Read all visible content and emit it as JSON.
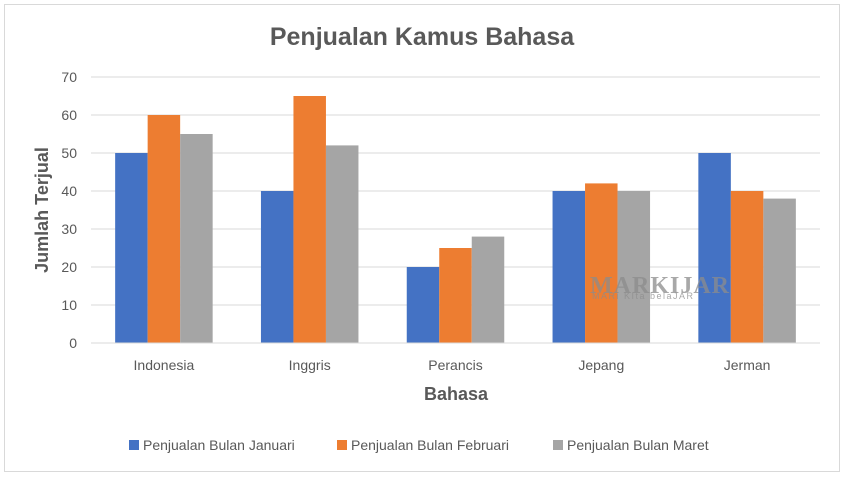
{
  "chart_data": {
    "type": "bar",
    "title": "Penjualan Kamus Bahasa",
    "xlabel": "Bahasa",
    "ylabel": "Jumlah Terjual",
    "categories": [
      "Indonesia",
      "Inggris",
      "Perancis",
      "Jepang",
      "Jerman"
    ],
    "series": [
      {
        "name": "Penjualan Bulan Januari",
        "color": "#4472c4",
        "values": [
          50,
          40,
          20,
          40,
          50
        ]
      },
      {
        "name": "Penjualan Bulan Februari",
        "color": "#ed7d31",
        "values": [
          60,
          65,
          25,
          42,
          40
        ]
      },
      {
        "name": "Penjualan Bulan Maret",
        "color": "#a5a5a5",
        "values": [
          55,
          52,
          28,
          40,
          38
        ]
      }
    ],
    "ylim": [
      0,
      70
    ],
    "yticks": [
      0,
      10,
      20,
      30,
      40,
      50,
      60,
      70
    ],
    "grid": true,
    "legend_position": "bottom"
  },
  "watermark": {
    "title": "MARKIJAR",
    "subtitle": "MARi KIta belaJAR"
  }
}
